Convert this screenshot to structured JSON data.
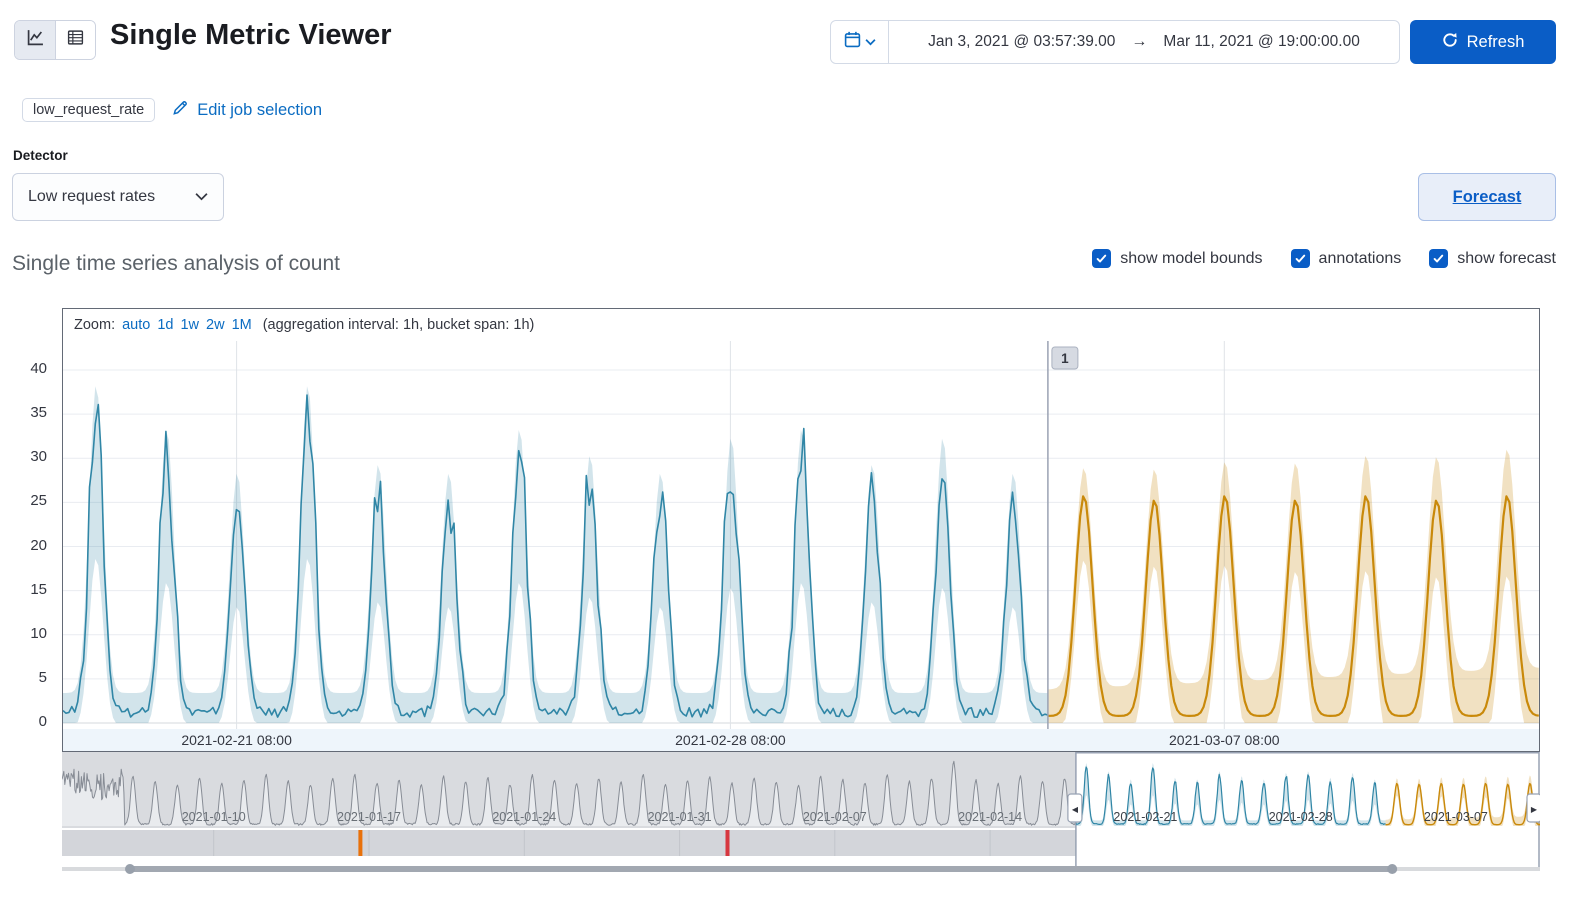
{
  "colors": {
    "primary": "#0a5dc6",
    "link": "#0b6cc2",
    "text": "#343741",
    "subdued": "#69707d",
    "actual_line": "#3086a6",
    "actual_bounds_fill": "rgba(48,134,166,0.22)",
    "forecast_line": "#c9890a",
    "forecast_bounds_fill": "rgba(201,137,10,0.25)",
    "axis_strip_bg": "#eef5fb",
    "grid_line": "#e9ecf1",
    "context_bg": "#d9dbdf",
    "context_fill": "#e9ebee",
    "context_line": "#878c95",
    "swimlane_bg": "#d3d5da",
    "swimlane_separator": "#c2c5cb",
    "window_border": "#98a2b3",
    "annotation_orange": "#e8710a",
    "annotation_red": "#d7373f"
  },
  "header": {
    "title": "Single Metric Viewer",
    "view_modes": [
      {
        "icon": "line-chart-icon",
        "selected": true
      },
      {
        "icon": "data-table-icon",
        "selected": false
      }
    ],
    "time_range": {
      "start": "Jan 3, 2021 @ 03:57:39.00",
      "arrow": "→",
      "end": "Mar 11, 2021 @ 19:00:00.00"
    },
    "refresh_label": "Refresh"
  },
  "job_bar": {
    "job_badge": "low_request_rate",
    "edit_link": "Edit job selection"
  },
  "detector": {
    "label": "Detector",
    "selected": "Low request rates"
  },
  "forecast_button": "Forecast",
  "analysis": {
    "heading": "Single time series analysis of count",
    "checkboxes": [
      {
        "label": "show model bounds",
        "checked": true
      },
      {
        "label": "annotations",
        "checked": true
      },
      {
        "label": "show forecast",
        "checked": true
      }
    ]
  },
  "zoom_bar": {
    "label": "Zoom:",
    "links": [
      "auto",
      "1d",
      "1w",
      "2w",
      "1M"
    ],
    "note": "(aggregation interval: 1h, bucket span: 1h)"
  },
  "chart_data": {
    "type": "line",
    "title": "Single time series analysis of count",
    "ylim": [
      0,
      40
    ],
    "y_ticks": [
      0,
      5,
      10,
      15,
      20,
      25,
      30,
      35,
      40
    ],
    "main": {
      "start": "2021-02-18 21:00",
      "end": "2021-03-11 19:00",
      "total_days": 20.92,
      "x_ticks": [
        {
          "label": "2021-02-21 08:00",
          "day": 2.46
        },
        {
          "label": "2021-02-28 08:00",
          "day": 9.46
        },
        {
          "label": "2021-03-07 08:00",
          "day": 16.46
        }
      ],
      "baseline": 1.2,
      "first_peak_day": 0.47,
      "actual_daily_peaks": [
        35,
        30,
        25,
        35,
        26,
        25,
        30,
        27,
        25,
        29,
        30,
        26,
        29,
        25
      ],
      "forecast_start_day": 13.96,
      "forecast_first_peak_day": 14.47,
      "forecast_daily_peaks": [
        25,
        24.5,
        25,
        24.5,
        25,
        24.5,
        25
      ],
      "annotation": {
        "label": "1",
        "day": 13.96
      }
    },
    "context": {
      "start": "2021-01-03 03:57",
      "end": "2021-03-11 19:00",
      "total_days": 66.63,
      "window_start_day": 45.71,
      "forecast_start_day": 59.67,
      "initial_high_days": 2.8,
      "first_peak_day": 0.2,
      "daily_peaks": [
        30,
        27,
        25,
        29,
        26,
        24,
        28,
        25,
        27,
        30,
        26,
        24,
        28,
        30,
        25,
        27,
        24,
        29,
        26,
        28,
        24,
        30,
        27,
        25,
        28,
        26,
        30,
        24,
        27,
        29,
        25,
        28,
        26,
        24,
        29,
        27,
        25,
        30,
        26,
        28,
        38,
        27,
        25,
        29,
        26,
        28
      ],
      "x_ticks": [
        {
          "label": "2021-01-10",
          "day": 6.84
        },
        {
          "label": "2021-01-17",
          "day": 13.84
        },
        {
          "label": "2021-01-24",
          "day": 20.84
        },
        {
          "label": "2021-01-31",
          "day": 27.84
        },
        {
          "label": "2021-02-07",
          "day": 34.84
        },
        {
          "label": "2021-02-14",
          "day": 41.84
        },
        {
          "label": "2021-02-21",
          "day": 48.84
        },
        {
          "label": "2021-02-28",
          "day": 55.84
        },
        {
          "label": "2021-03-07",
          "day": 62.84
        }
      ],
      "swimlane_marks": [
        {
          "day": 13.45,
          "color": "#e8710a"
        },
        {
          "day": 30.0,
          "color": "#d7373f"
        }
      ],
      "scrollbar": {
        "start_frac": 0.046,
        "end_frac": 0.9
      }
    }
  }
}
